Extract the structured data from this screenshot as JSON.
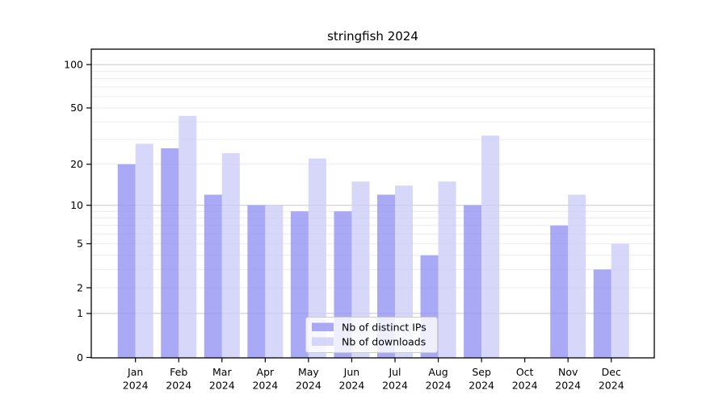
{
  "chart_data": {
    "type": "bar",
    "title": "stringfish 2024",
    "categories": [
      "Jan",
      "Feb",
      "Mar",
      "Apr",
      "May",
      "Jun",
      "Jul",
      "Aug",
      "Sep",
      "Oct",
      "Nov",
      "Dec"
    ],
    "year_label": "2024",
    "series": [
      {
        "name": "Nb of distinct IPs",
        "color": "#9393f2",
        "values": [
          20,
          26,
          12,
          10,
          9,
          9,
          12,
          4,
          10,
          0,
          7,
          3
        ]
      },
      {
        "name": "Nb of downloads",
        "color": "#cdcdf8",
        "values": [
          28,
          44,
          24,
          10,
          22,
          15,
          14,
          15,
          32,
          0,
          12,
          5
        ]
      }
    ],
    "yscale": "log1p",
    "ylim": [
      0,
      127
    ],
    "yticks": [
      0,
      1,
      2,
      5,
      10,
      20,
      50,
      100
    ],
    "major_gridline_values": [
      1,
      10,
      100
    ],
    "minor_gridline_values": [
      2,
      3,
      4,
      5,
      6,
      7,
      8,
      9,
      20,
      30,
      40,
      50,
      60,
      70,
      80,
      90
    ],
    "grid": true,
    "legend_position": "lower center",
    "colors": {
      "minor_grid": "#ececec",
      "major_grid": "#c8c8c8",
      "frame": "#000000",
      "legend_border": "#cccccc"
    }
  }
}
